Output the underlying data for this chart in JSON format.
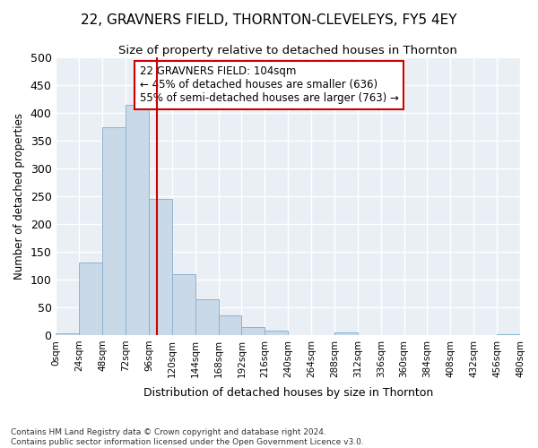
{
  "title1": "22, GRAVNERS FIELD, THORNTON-CLEVELEYS, FY5 4EY",
  "title2": "Size of property relative to detached houses in Thornton",
  "xlabel": "Distribution of detached houses by size in Thornton",
  "ylabel": "Number of detached properties",
  "footnote": "Contains HM Land Registry data © Crown copyright and database right 2024.\nContains public sector information licensed under the Open Government Licence v3.0.",
  "bin_edges": [
    0,
    24,
    48,
    72,
    96,
    120,
    144,
    168,
    192,
    216,
    240,
    264,
    288,
    312,
    336,
    360,
    384,
    408,
    432,
    456,
    480
  ],
  "bar_heights": [
    3,
    130,
    375,
    415,
    245,
    110,
    65,
    35,
    15,
    8,
    0,
    0,
    5,
    0,
    0,
    0,
    0,
    0,
    0,
    2
  ],
  "bar_color": "#c9d9e8",
  "bar_edge_color": "#8ab4d0",
  "property_size": 104,
  "annotation_box_text": "22 GRAVNERS FIELD: 104sqm\n← 45% of detached houses are smaller (636)\n55% of semi-detached houses are larger (763) →",
  "red_line_color": "#cc0000",
  "ylim": [
    0,
    500
  ],
  "background_color": "#eaeff5",
  "grid_color": "#ffffff",
  "title1_fontsize": 11,
  "title2_fontsize": 9.5,
  "tick_label_fontsize": 7.5,
  "ylabel_fontsize": 8.5,
  "xlabel_fontsize": 9,
  "footnote_fontsize": 6.5
}
